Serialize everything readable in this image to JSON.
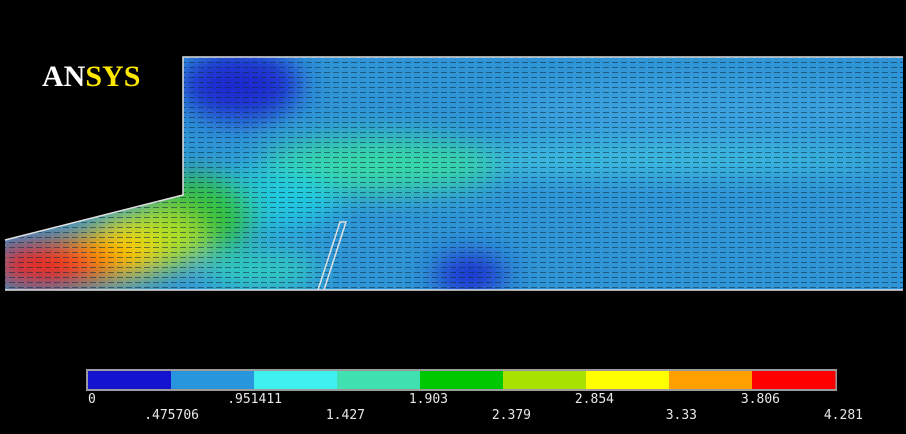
{
  "logo": [
    "AN",
    "SYS"
  ],
  "legend": {
    "labels": [
      "0",
      ".475706",
      ".951411",
      "1.427",
      "1.903",
      "2.379",
      "2.854",
      "3.33",
      "3.806",
      "4.281"
    ]
  }
}
